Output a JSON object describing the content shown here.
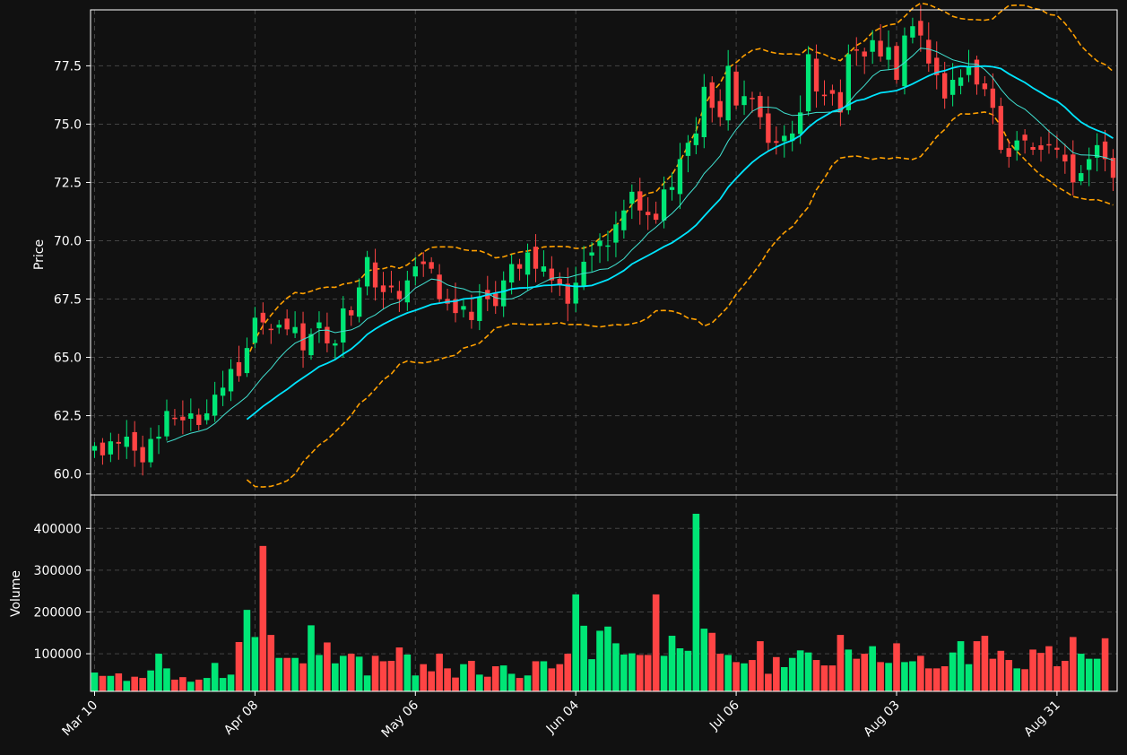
{
  "chart_data": {
    "type": "candlestick",
    "x_tick_labels": [
      "Mar 10",
      "Apr 08",
      "May 06",
      "Jun 04",
      "Jul 06",
      "Aug 03",
      "Aug 31"
    ],
    "colors": {
      "background": "#111111",
      "up": "#00e676",
      "down": "#ff4444",
      "sma_short": "#40e0d0",
      "sma_long": "#00e5ff",
      "bollinger": "#ffa000",
      "grid": "#444444",
      "axis": "#ffffff"
    },
    "price_panel": {
      "ylabel": "Price",
      "ylim": [
        59.1,
        79.9
      ],
      "yticks": [
        60.0,
        62.5,
        65.0,
        67.5,
        70.0,
        72.5,
        75.0,
        77.5
      ],
      "close": [
        61.2,
        60.8,
        61.4,
        61.3,
        61.6,
        61.0,
        60.5,
        61.5,
        61.6,
        62.7,
        62.4,
        62.3,
        62.6,
        62.1,
        62.6,
        63.4,
        63.7,
        64.5,
        64.2,
        65.4,
        66.7,
        66.5,
        66.2,
        66.4,
        66.2,
        66.3,
        65.3,
        66.0,
        66.5,
        65.6,
        65.6,
        67.1,
        66.8,
        68.0,
        69.3,
        68.0,
        67.8,
        68.0,
        67.5,
        68.3,
        68.9,
        69.0,
        68.8,
        67.5,
        67.3,
        66.9,
        67.2,
        66.6,
        67.6,
        67.5,
        67.2,
        68.3,
        69.0,
        68.8,
        69.5,
        68.8,
        68.9,
        68.3,
        68.1,
        67.3,
        68.2,
        69.1,
        69.5,
        70.0,
        69.8,
        70.7,
        71.3,
        72.1,
        71.3,
        71.1,
        70.9,
        72.2,
        72.3,
        73.5,
        74.2,
        74.6,
        76.6,
        75.7,
        75.3,
        77.5,
        75.8,
        76.2,
        76.1,
        75.3,
        74.2,
        74.2,
        74.5,
        74.6,
        75.5,
        78.0,
        76.4,
        76.2,
        76.3,
        75.5,
        78.0,
        78.2,
        77.9,
        78.6,
        77.9,
        78.3,
        76.9,
        78.8,
        79.2,
        78.8,
        77.6,
        77.1,
        76.1,
        76.9,
        77.0,
        77.5,
        76.7,
        76.5,
        75.7,
        73.9,
        73.6,
        74.3,
        74.3,
        73.9,
        73.9,
        74.1,
        73.9,
        73.4,
        72.5,
        72.9,
        73.5,
        74.1,
        73.5,
        72.7
      ]
    },
    "volume_panel": {
      "ylabel": "Volume",
      "ylim": [
        10000,
        480000
      ],
      "yticks": [
        100000,
        200000,
        300000,
        400000
      ],
      "volume": [
        55000,
        47000,
        47000,
        53000,
        35000,
        45000,
        42000,
        60000,
        100000,
        65000,
        38000,
        44000,
        33000,
        38000,
        42000,
        78000,
        42000,
        50000,
        128000,
        205000,
        140000,
        358000,
        145000,
        90000,
        90000,
        90000,
        77000,
        168000,
        97000,
        127000,
        77000,
        95000,
        100000,
        93000,
        48000,
        95000,
        82000,
        83000,
        115000,
        98000,
        48000,
        75000,
        58000,
        100000,
        65000,
        43000,
        75000,
        83000,
        50000,
        45000,
        70000,
        72000,
        52000,
        42000,
        48000,
        82000,
        82000,
        65000,
        75000,
        100000,
        242000,
        167000,
        87000,
        155000,
        165000,
        125000,
        98000,
        101000,
        97000,
        97000,
        242000,
        95000,
        143000,
        113000,
        107000,
        435000,
        160000,
        150000,
        100000,
        97000,
        80000,
        77000,
        85000,
        130000,
        52000,
        92000,
        68000,
        90000,
        108000,
        103000,
        85000,
        72000,
        72000,
        145000,
        110000,
        88000,
        100000,
        118000,
        80000,
        78000,
        125000,
        80000,
        82000,
        95000,
        65000,
        65000,
        70000,
        103000,
        130000,
        75000,
        130000,
        143000,
        88000,
        107000,
        85000,
        65000,
        63000,
        110000,
        102000,
        118000,
        70000,
        83000,
        140000,
        100000,
        88000,
        88000,
        137000
      ]
    }
  }
}
